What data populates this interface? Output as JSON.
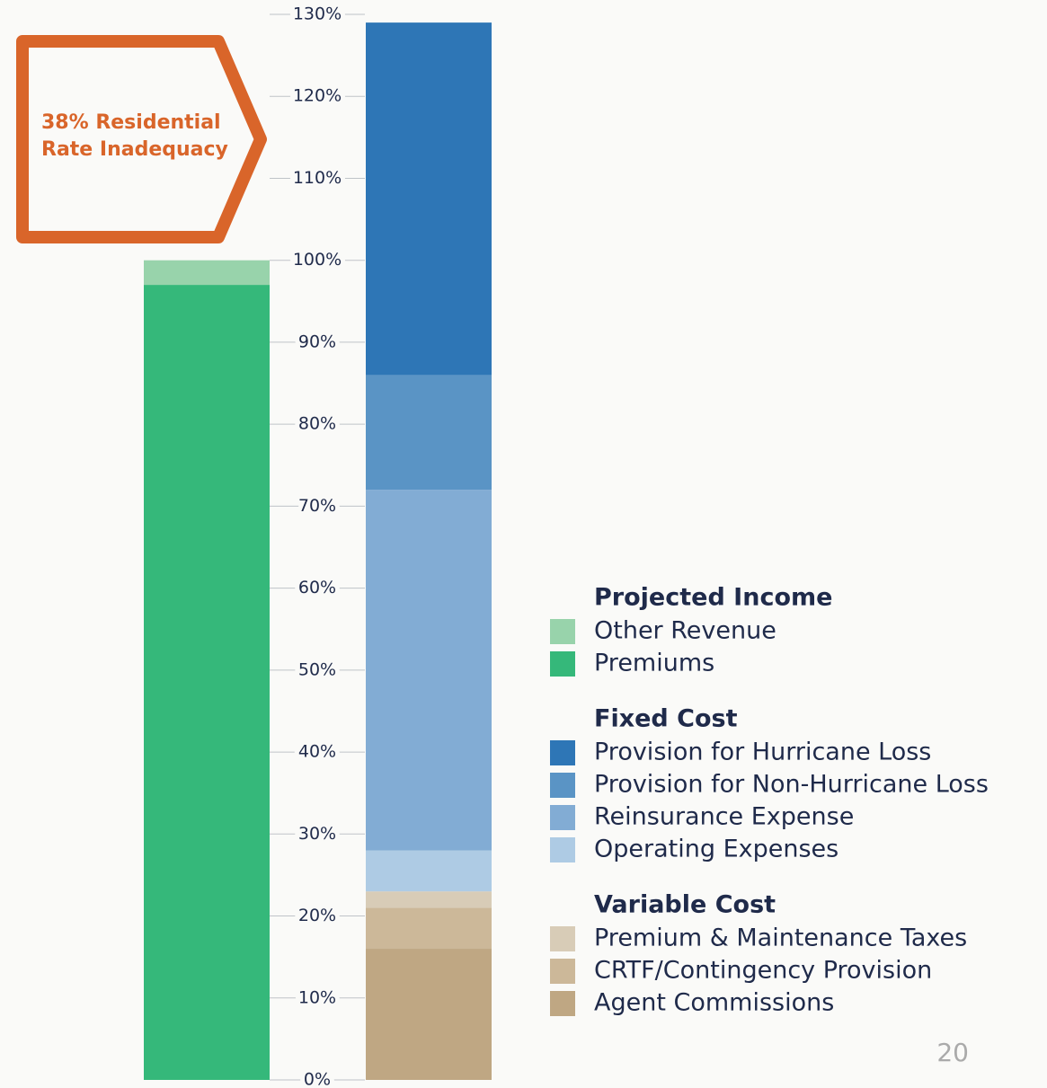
{
  "chart_data": {
    "type": "stacked-bar",
    "annotation": "38% Residential Rate Inadequacy",
    "categories": [
      null,
      null
    ],
    "groups": [
      {
        "name": "Projected Income",
        "series": [
          {
            "name": "Other Revenue",
            "color": "#98d3ab",
            "values": [
              3,
              null
            ]
          },
          {
            "name": "Premiums",
            "color": "#35b87a",
            "values": [
              97,
              null
            ]
          }
        ]
      },
      {
        "name": "Fixed Cost",
        "series": [
          {
            "name": "Provision for Hurricane Loss",
            "color": "#2e76b6",
            "values": [
              null,
              43
            ]
          },
          {
            "name": "Provision for Non-Hurricane Loss",
            "color": "#5a94c5",
            "values": [
              null,
              14
            ]
          },
          {
            "name": "Reinsurance Expense",
            "color": "#82acd4",
            "values": [
              null,
              44
            ]
          },
          {
            "name": "Operating Expenses",
            "color": "#aecbe4",
            "values": [
              null,
              5
            ]
          }
        ]
      },
      {
        "name": "Variable Cost",
        "series": [
          {
            "name": "Premium & Maintenance Taxes",
            "color": "#d8ccb7",
            "values": [
              null,
              2
            ]
          },
          {
            "name": "CRTF/Contingency Provision",
            "color": "#ccb899",
            "values": [
              null,
              5
            ]
          },
          {
            "name": "Agent Commissions",
            "color": "#bfa783",
            "values": [
              null,
              16
            ]
          }
        ]
      }
    ],
    "ylim": [
      0,
      130
    ],
    "yticks": [
      {
        "value": 0,
        "label": "0%"
      },
      {
        "value": 10,
        "label": "10%"
      },
      {
        "value": 20,
        "label": "20%"
      },
      {
        "value": 30,
        "label": "30%"
      },
      {
        "value": 40,
        "label": "40%"
      },
      {
        "value": 50,
        "label": "50%"
      },
      {
        "value": 60,
        "label": "60%"
      },
      {
        "value": 70,
        "label": "70%"
      },
      {
        "value": 80,
        "label": "80%"
      },
      {
        "value": 90,
        "label": "90%"
      },
      {
        "value": 100,
        "label": "100%"
      },
      {
        "value": 110,
        "label": "110%"
      },
      {
        "value": 120,
        "label": "120%"
      },
      {
        "value": 130,
        "label": "130%"
      }
    ],
    "grid": true
  },
  "page_number": "20"
}
